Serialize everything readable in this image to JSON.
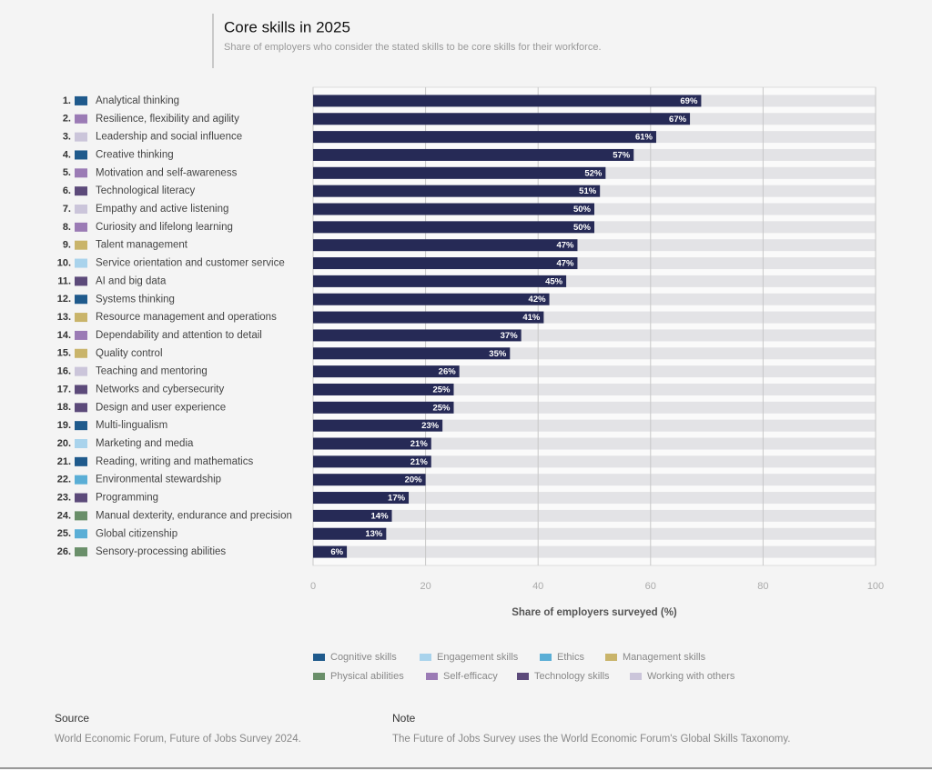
{
  "chart_data": {
    "type": "bar",
    "orientation": "horizontal",
    "title": "Core skills in 2025",
    "subtitle": "Share of employers who consider the stated skills to be core skills for their workforce.",
    "ranks": [
      "1.",
      "2.",
      "3.",
      "4.",
      "5.",
      "6.",
      "7.",
      "8.",
      "9.",
      "10.",
      "11.",
      "12.",
      "13.",
      "14.",
      "15.",
      "16.",
      "17.",
      "18.",
      "19.",
      "20.",
      "21.",
      "22.",
      "23.",
      "24.",
      "25.",
      "26."
    ],
    "categories": [
      "Analytical thinking",
      "Resilience, flexibility and agility",
      "Leadership and social influence",
      "Creative thinking",
      "Motivation and self-awareness",
      "Technological literacy",
      "Empathy and active listening",
      "Curiosity and lifelong learning",
      "Talent management",
      "Service orientation and customer service",
      "AI and big data",
      "Systems thinking",
      "Resource management and operations",
      "Dependability and attention to detail",
      "Quality control",
      "Teaching and mentoring",
      "Networks and cybersecurity",
      "Design and user experience",
      "Multi-lingualism",
      "Marketing and media",
      "Reading, writing and mathematics",
      "Environmental stewardship",
      "Programming",
      "Manual dexterity, endurance and precision",
      "Global citizenship",
      "Sensory-processing abilities"
    ],
    "category_groups": [
      "Cognitive skills",
      "Self-efficacy",
      "Working with others",
      "Cognitive skills",
      "Self-efficacy",
      "Technology skills",
      "Working with others",
      "Self-efficacy",
      "Management skills",
      "Engagement skills",
      "Technology skills",
      "Cognitive skills",
      "Management skills",
      "Self-efficacy",
      "Management skills",
      "Working with others",
      "Technology skills",
      "Technology skills",
      "Cognitive skills",
      "Engagement skills",
      "Cognitive skills",
      "Ethics",
      "Technology skills",
      "Physical abilities",
      "Ethics",
      "Physical abilities"
    ],
    "values": [
      69,
      67,
      61,
      57,
      52,
      51,
      50,
      50,
      47,
      47,
      45,
      42,
      41,
      37,
      35,
      26,
      25,
      25,
      23,
      21,
      21,
      20,
      17,
      14,
      13,
      6
    ],
    "value_labels": [
      "69%",
      "67%",
      "61%",
      "57%",
      "52%",
      "51%",
      "50%",
      "50%",
      "47%",
      "47%",
      "45%",
      "42%",
      "41%",
      "37%",
      "35%",
      "26%",
      "25%",
      "25%",
      "23%",
      "21%",
      "21%",
      "20%",
      "17%",
      "14%",
      "13%",
      "6%"
    ],
    "color": "#262a56",
    "track_color": "#e3e3e6",
    "xlim": [
      0,
      100
    ],
    "xticks": [
      0,
      20,
      40,
      60,
      80,
      100
    ],
    "grid": true,
    "xlabel": "Share of employers surveyed (%)",
    "legend": [
      {
        "name": "Cognitive skills",
        "color": "#1f5a8c"
      },
      {
        "name": "Engagement skills",
        "color": "#a9d3ec"
      },
      {
        "name": "Ethics",
        "color": "#5aaed6"
      },
      {
        "name": "Management skills",
        "color": "#c9b46a"
      },
      {
        "name": "Physical abilities",
        "color": "#6a8f6a"
      },
      {
        "name": "Self-efficacy",
        "color": "#9b7bb5"
      },
      {
        "name": "Technology skills",
        "color": "#5c4a7a"
      },
      {
        "name": "Working with others",
        "color": "#cbc5da"
      }
    ]
  },
  "source": {
    "heading": "Source",
    "text": "World Economic Forum, Future of Jobs Survey 2024."
  },
  "note": {
    "heading": "Note",
    "text": "The Future of Jobs Survey uses the World Economic Forum's Global Skills Taxonomy."
  }
}
